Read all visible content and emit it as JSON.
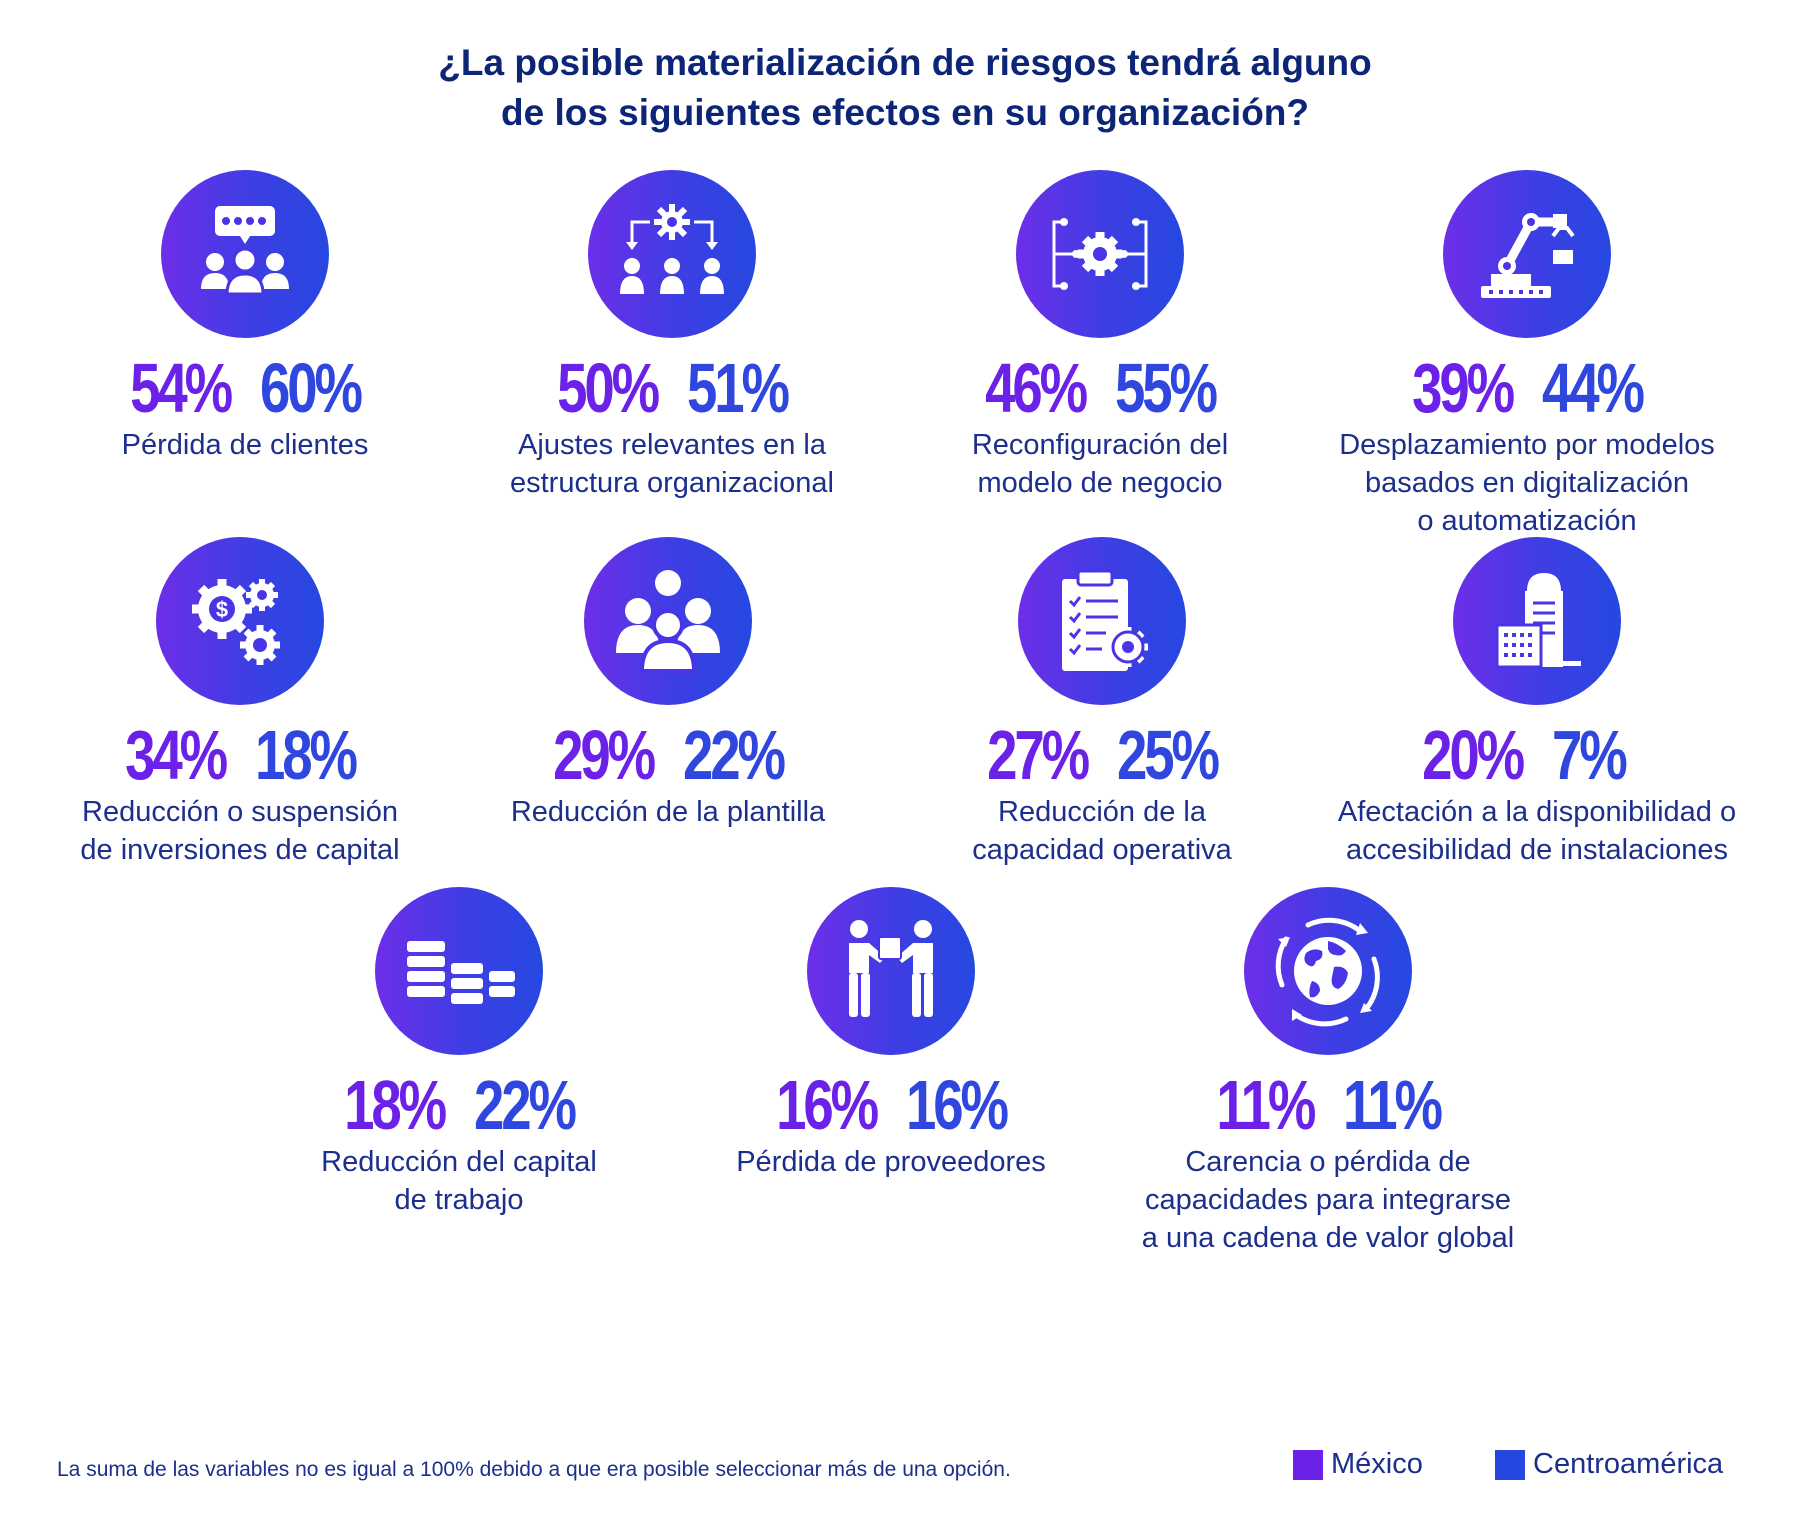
{
  "title_lines": [
    "¿La posible materialización de riesgos tendrá alguno",
    "de los siguientes efectos en su organización?"
  ],
  "colors": {
    "mexico": "#6b21e8",
    "centroamerica": "#2f47df",
    "circle_gradient_start": "#6d2ee8",
    "circle_gradient_end": "#2648e0",
    "text": "#1c2f8c",
    "title": "#0c2577"
  },
  "legend": {
    "mexico": "México",
    "centroamerica": "Centroamérica"
  },
  "note": "La suma de las variables no es igual a 100% debido a que era posible seleccionar más de una opción.",
  "chart_data": {
    "type": "table",
    "title": "¿La posible materialización de riesgos tendrá alguno de los siguientes efectos en su organización?",
    "series": [
      {
        "name": "México",
        "values": [
          54,
          50,
          46,
          39,
          34,
          29,
          27,
          20,
          18,
          16,
          11
        ]
      },
      {
        "name": "Centroamérica",
        "values": [
          60,
          51,
          55,
          44,
          18,
          22,
          25,
          7,
          22,
          16,
          11
        ]
      }
    ],
    "items": [
      {
        "icon": "customer-rating-icon",
        "mexico": "54%",
        "centroamerica": "60%",
        "label_lines": [
          "Pérdida de clientes"
        ]
      },
      {
        "icon": "org-structure-gear-icon",
        "mexico": "50%",
        "centroamerica": "51%",
        "label_lines": [
          "Ajustes relevantes en la",
          "estructura organizacional"
        ]
      },
      {
        "icon": "gear-network-icon",
        "mexico": "46%",
        "centroamerica": "55%",
        "label_lines": [
          "Reconfiguración del",
          "modelo de negocio"
        ]
      },
      {
        "icon": "robot-arm-icon",
        "mexico": "39%",
        "centroamerica": "44%",
        "label_lines": [
          "Desplazamiento por modelos",
          "basados en digitalización",
          "o automatización"
        ]
      },
      {
        "icon": "money-gears-icon",
        "mexico": "34%",
        "centroamerica": "18%",
        "label_lines": [
          "Reducción o suspensión",
          "de inversiones de capital"
        ]
      },
      {
        "icon": "team-icon",
        "mexico": "29%",
        "centroamerica": "22%",
        "label_lines": [
          "Reducción de la plantilla"
        ]
      },
      {
        "icon": "checklist-gear-icon",
        "mexico": "27%",
        "centroamerica": "25%",
        "label_lines": [
          "Reducción de la",
          "capacidad operativa"
        ]
      },
      {
        "icon": "buildings-icon",
        "mexico": "20%",
        "centroamerica": "7%",
        "label_lines": [
          "Afectación a la disponibilidad o",
          "accesibilidad de instalaciones"
        ]
      },
      {
        "icon": "declining-stacks-icon",
        "mexico": "18%",
        "centroamerica": "22%",
        "label_lines": [
          "Reducción del capital",
          "de trabajo"
        ]
      },
      {
        "icon": "delivery-handoff-icon",
        "mexico": "16%",
        "centroamerica": "16%",
        "label_lines": [
          "Pérdida de proveedores"
        ]
      },
      {
        "icon": "globe-arrows-icon",
        "mexico": "11%",
        "centroamerica": "11%",
        "label_lines": [
          "Carencia o pérdida de",
          "capacidades para integrarse",
          "a una cadena de valor global"
        ]
      }
    ]
  }
}
